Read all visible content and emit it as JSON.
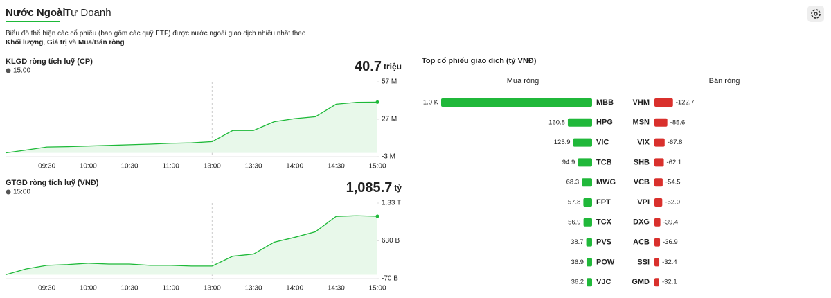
{
  "tabs": [
    "Nước Ngoài",
    "Tự Doanh"
  ],
  "description": [
    [
      {
        "text": "Biểu đồ thể hiện các cổ phiếu (bao gồm các quỹ ETF) được nước ngoài giao dịch nhiều nhất theo",
        "bold": false
      }
    ],
    [
      {
        "text": "Khối lượng",
        "bold": true
      },
      {
        "text": ", ",
        "bold": false
      },
      {
        "text": "Giá trị",
        "bold": true
      },
      {
        "text": " và ",
        "bold": false
      },
      {
        "text": "Mua/Bán ròng",
        "bold": true
      }
    ]
  ],
  "chart_data": [
    {
      "type": "line",
      "title": "KLGD ròng tích luỹ (CP)",
      "time": "15:00",
      "headline": {
        "value": "40.7",
        "unit": "triệu"
      },
      "categories": [
        null,
        null,
        "09:30",
        null,
        "10:00",
        null,
        "10:30",
        null,
        "11:00",
        null,
        "13:00",
        null,
        "13:30",
        null,
        "14:00",
        null,
        "14:30",
        null,
        "15:00"
      ],
      "values": [
        0,
        2.3,
        4.7,
        5,
        5.5,
        6,
        6.5,
        7,
        7.7,
        8,
        9,
        18,
        18,
        25,
        27.5,
        29,
        39,
        40.5,
        40.7
      ],
      "color": "#1db938",
      "ylim": [
        -3,
        57
      ],
      "yticks": [
        {
          "value": -3,
          "label": "-3 M"
        },
        {
          "value": 27,
          "label": "27 M"
        },
        {
          "value": 57,
          "label": "57 M"
        }
      ]
    },
    {
      "type": "line",
      "title": "GTGD ròng tích luỹ (VNĐ)",
      "time": "15:00",
      "headline": {
        "value": "1,085.7",
        "unit": "tỷ"
      },
      "categories": [
        null,
        null,
        "09:30",
        null,
        "10:00",
        null,
        "10:30",
        null,
        "11:00",
        null,
        "13:00",
        null,
        "13:30",
        null,
        "14:00",
        null,
        "14:30",
        null,
        "15:00"
      ],
      "values": [
        0,
        110,
        176,
        190,
        215,
        200,
        200,
        176,
        176,
        163,
        163,
        345,
        384,
        604,
        695,
        798,
        1083,
        1096,
        1085.7
      ],
      "color": "#1db938",
      "ylim": [
        -70,
        1330
      ],
      "yticks": [
        {
          "value": -70,
          "label": "-70 B"
        },
        {
          "value": 630,
          "label": "630 B"
        },
        {
          "value": 1330,
          "label": "1.33 T"
        }
      ]
    },
    {
      "type": "bar",
      "title": "Top cổ phiếu giao dịch (tỷ VNĐ)",
      "series": [
        {
          "name": "Mua ròng",
          "color": "#20b83a",
          "categories": [
            "MBB",
            "HPG",
            "VIC",
            "TCB",
            "MWG",
            "FPT",
            "TCX",
            "PVS",
            "POW",
            "VJC"
          ],
          "values": [
            1000,
            160.8,
            125.9,
            94.9,
            68.3,
            57.8,
            56.9,
            38.7,
            36.9,
            36.2
          ],
          "value_labels": [
            "1.0 K",
            "160.8",
            "125.9",
            "94.9",
            "68.3",
            "57.8",
            "56.9",
            "38.7",
            "36.9",
            "36.2"
          ]
        },
        {
          "name": "Bán ròng",
          "color": "#d9302c",
          "categories": [
            "VHM",
            "MSN",
            "VIX",
            "SHB",
            "VCB",
            "VPI",
            "DXG",
            "ACB",
            "SSI",
            "GMD"
          ],
          "values": [
            -122.7,
            -85.6,
            -67.8,
            -62.1,
            -54.5,
            -52.0,
            -39.4,
            -36.9,
            -32.4,
            -32.1
          ],
          "value_labels": [
            "-122.7",
            "-85.6",
            "-67.8",
            "-62.1",
            "-54.5",
            "-52.0",
            "-39.4",
            "-36.9",
            "-32.4",
            "-32.1"
          ]
        }
      ]
    }
  ]
}
